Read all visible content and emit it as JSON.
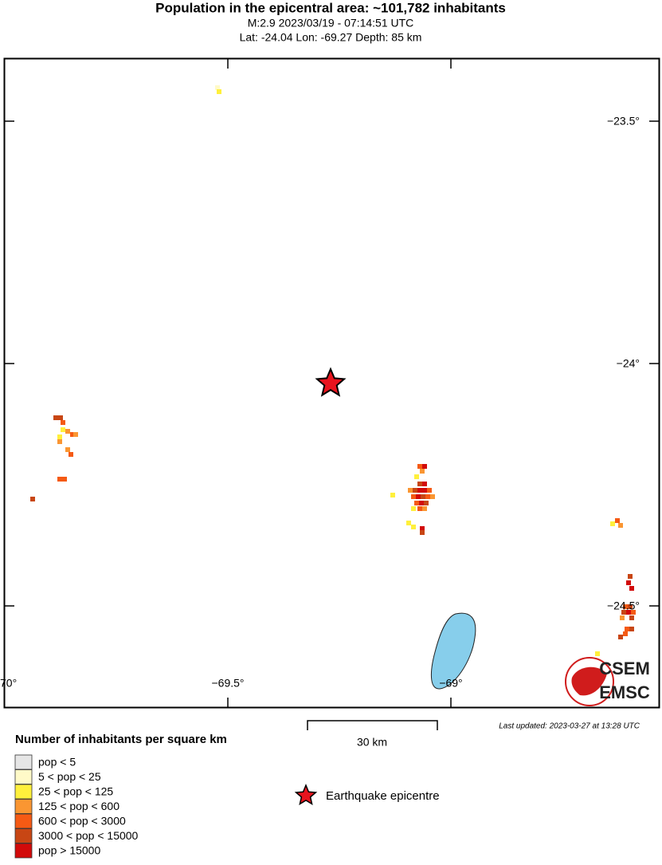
{
  "header": {
    "title": "Population in the epicentral area: ~101,782 inhabitants",
    "subtitle": "M:2.9 2023/03/19 - 07:14:51 UTC",
    "location": "Lat: -24.04 Lon: -69.27 Depth: 85 km"
  },
  "map": {
    "lat_labels": [
      "−23.5°",
      "−24°",
      "−24.5°"
    ],
    "lon_labels": [
      "70°",
      "−69.5°",
      "−69°"
    ],
    "scale": "30 km",
    "updated": "Last updated: 2023-03-27 at 13:28 UTC",
    "logo": [
      "CSEM",
      "EMSC"
    ]
  },
  "legend": {
    "title": "Number of inhabitants per square km",
    "items": [
      {
        "label": "pop < 5",
        "color": "#e6e6e6"
      },
      {
        "label": "5 < pop < 25",
        "color": "#fffac8"
      },
      {
        "label": "25 < pop < 125",
        "color": "#fff03c"
      },
      {
        "label": "125 < pop < 600",
        "color": "#fa9632"
      },
      {
        "label": "600 < pop < 3000",
        "color": "#f55a14"
      },
      {
        "label": "3000 < pop < 15000",
        "color": "#c84614"
      },
      {
        "label": "pop > 15000",
        "color": "#d20a0a"
      }
    ],
    "epicentre": "Earthquake epicentre"
  }
}
